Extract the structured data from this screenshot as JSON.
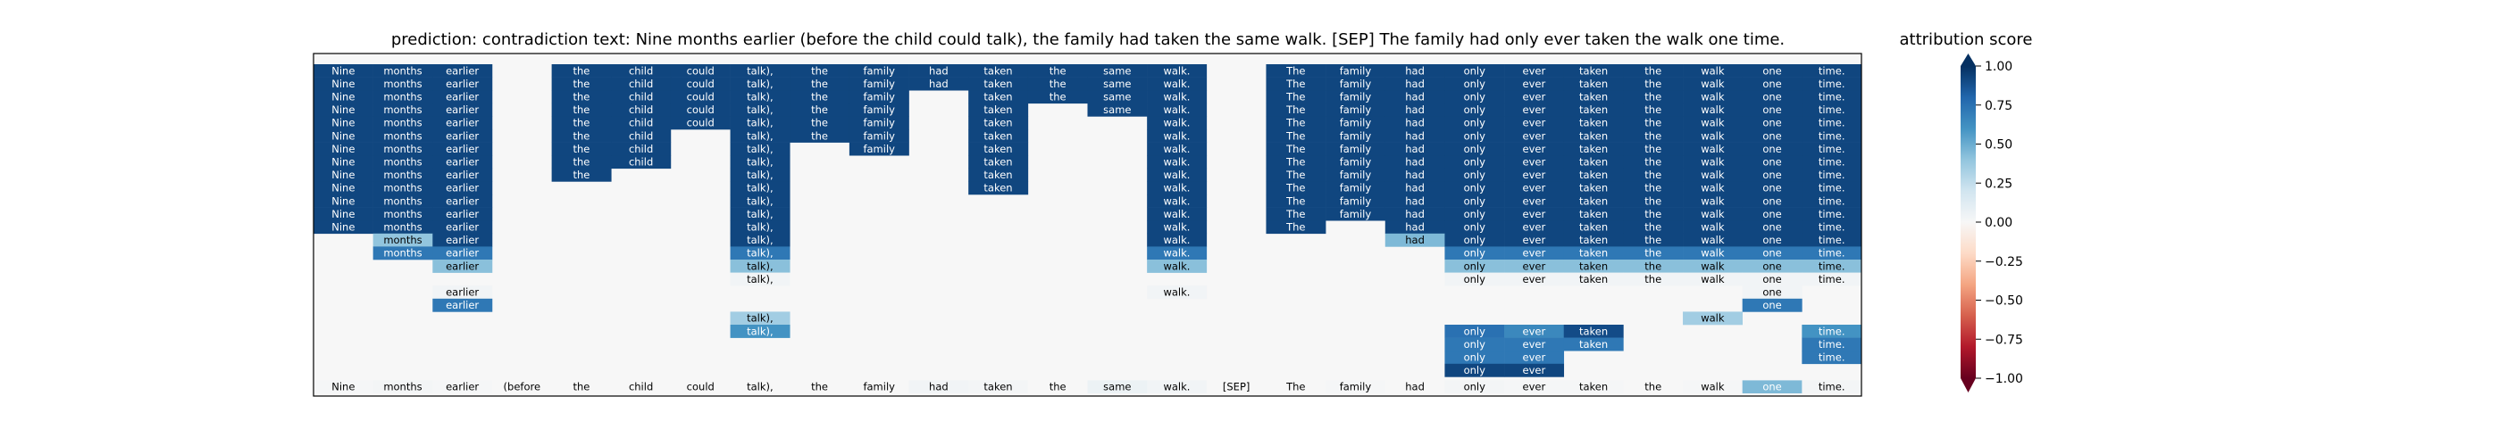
{
  "chart_data": {
    "type": "heatmap",
    "title": "prediction:  contradiction     text:  Nine months earlier (before the child could talk), the family had taken the same walk. [SEP] The family had only ever taken the walk one time.",
    "tokens": [
      "Nine",
      "months",
      "earlier",
      "(before",
      "the",
      "child",
      "could",
      "talk),",
      "the",
      "family",
      "had",
      "taken",
      "the",
      "same",
      "walk.",
      "[SEP]",
      "The",
      "family",
      "had",
      "only",
      "ever",
      "taken",
      "the",
      "walk",
      "one",
      "time."
    ],
    "colorbar": {
      "label": "attribution score",
      "range": [
        -1.0,
        1.0
      ],
      "ticks": [
        "1.00",
        "0.75",
        "0.50",
        "0.25",
        "0.00",
        "−0.25",
        "−0.50",
        "−0.75",
        "−1.00"
      ],
      "tick_values": [
        1.0,
        0.75,
        0.5,
        0.25,
        0.0,
        -0.25,
        -0.5,
        -0.75,
        -1.0
      ],
      "colormap": "RdBu",
      "extend": "both"
    },
    "bottom_row_values": [
      0.01,
      0.02,
      0.01,
      0.0,
      0.0,
      0.0,
      0.0,
      0.0,
      0.0,
      0.0,
      0.03,
      0.02,
      0.0,
      0.06,
      0.03,
      0.0,
      0.0,
      0.01,
      0.0,
      0.02,
      0.01,
      0.01,
      0.0,
      0.01,
      0.45,
      0.02
    ],
    "grid": [
      [
        0.92,
        0.92,
        0.92,
        0.0,
        0.92,
        0.92,
        0.92,
        0.92,
        0.92,
        0.92,
        0.92,
        0.92,
        0.92,
        0.92,
        0.92,
        0.0,
        0.92,
        0.92,
        0.92,
        0.92,
        0.92,
        0.92,
        0.92,
        0.92,
        0.92,
        0.92
      ],
      [
        0.92,
        0.92,
        0.92,
        0.0,
        0.92,
        0.92,
        0.92,
        0.92,
        0.92,
        0.92,
        0.92,
        0.92,
        0.92,
        0.92,
        0.92,
        0.0,
        0.92,
        0.92,
        0.92,
        0.92,
        0.92,
        0.92,
        0.92,
        0.92,
        0.92,
        0.92
      ],
      [
        0.92,
        0.92,
        0.92,
        0.0,
        0.92,
        0.92,
        0.92,
        0.92,
        0.92,
        0.92,
        0.0,
        0.92,
        0.92,
        0.92,
        0.92,
        0.0,
        0.92,
        0.92,
        0.92,
        0.92,
        0.92,
        0.92,
        0.92,
        0.92,
        0.92,
        0.92
      ],
      [
        0.92,
        0.92,
        0.92,
        0.0,
        0.92,
        0.92,
        0.92,
        0.92,
        0.92,
        0.92,
        0.0,
        0.92,
        0.0,
        0.92,
        0.92,
        0.0,
        0.92,
        0.92,
        0.92,
        0.92,
        0.92,
        0.92,
        0.92,
        0.92,
        0.92,
        0.92
      ],
      [
        0.92,
        0.92,
        0.92,
        0.0,
        0.92,
        0.92,
        0.92,
        0.92,
        0.92,
        0.92,
        0.0,
        0.92,
        0.0,
        0.0,
        0.92,
        0.0,
        0.92,
        0.92,
        0.92,
        0.92,
        0.92,
        0.92,
        0.92,
        0.92,
        0.92,
        0.92
      ],
      [
        0.92,
        0.92,
        0.92,
        0.0,
        0.92,
        0.92,
        0.0,
        0.92,
        0.92,
        0.92,
        0.0,
        0.92,
        0.0,
        0.0,
        0.92,
        0.0,
        0.92,
        0.92,
        0.92,
        0.92,
        0.92,
        0.92,
        0.92,
        0.92,
        0.92,
        0.92
      ],
      [
        0.92,
        0.92,
        0.92,
        0.0,
        0.92,
        0.92,
        0.0,
        0.92,
        0.0,
        0.92,
        0.0,
        0.92,
        0.0,
        0.0,
        0.92,
        0.0,
        0.92,
        0.92,
        0.92,
        0.92,
        0.92,
        0.92,
        0.92,
        0.92,
        0.92,
        0.92
      ],
      [
        0.92,
        0.92,
        0.92,
        0.0,
        0.92,
        0.92,
        0.0,
        0.92,
        0.0,
        0.0,
        0.0,
        0.92,
        0.0,
        0.0,
        0.92,
        0.0,
        0.92,
        0.92,
        0.92,
        0.92,
        0.92,
        0.92,
        0.92,
        0.92,
        0.92,
        0.92
      ],
      [
        0.92,
        0.92,
        0.92,
        0.0,
        0.92,
        0.0,
        0.0,
        0.92,
        0.0,
        0.0,
        0.0,
        0.92,
        0.0,
        0.0,
        0.92,
        0.0,
        0.92,
        0.92,
        0.92,
        0.92,
        0.92,
        0.92,
        0.92,
        0.92,
        0.92,
        0.92
      ],
      [
        0.92,
        0.92,
        0.92,
        0.0,
        0.0,
        0.0,
        0.0,
        0.92,
        0.0,
        0.0,
        0.0,
        0.92,
        0.0,
        0.0,
        0.92,
        0.0,
        0.92,
        0.92,
        0.92,
        0.92,
        0.92,
        0.92,
        0.92,
        0.92,
        0.92,
        0.92
      ],
      [
        0.92,
        0.92,
        0.92,
        0.0,
        0.0,
        0.0,
        0.0,
        0.92,
        0.0,
        0.0,
        0.0,
        0.0,
        0.0,
        0.0,
        0.92,
        0.0,
        0.92,
        0.92,
        0.92,
        0.92,
        0.92,
        0.92,
        0.92,
        0.92,
        0.92,
        0.92
      ],
      [
        0.92,
        0.92,
        0.92,
        0.0,
        0.0,
        0.0,
        0.0,
        0.92,
        0.0,
        0.0,
        0.0,
        0.0,
        0.0,
        0.0,
        0.92,
        0.0,
        0.92,
        0.92,
        0.92,
        0.92,
        0.92,
        0.92,
        0.92,
        0.92,
        0.92,
        0.92
      ],
      [
        0.92,
        0.92,
        0.92,
        0.0,
        0.0,
        0.0,
        0.0,
        0.92,
        0.0,
        0.0,
        0.0,
        0.0,
        0.0,
        0.0,
        0.92,
        0.0,
        0.92,
        0.0,
        0.92,
        0.92,
        0.92,
        0.92,
        0.92,
        0.92,
        0.92,
        0.92
      ],
      [
        0.0,
        0.4,
        0.92,
        0.0,
        0.0,
        0.0,
        0.0,
        0.92,
        0.0,
        0.0,
        0.0,
        0.0,
        0.0,
        0.0,
        0.92,
        0.0,
        0.0,
        0.0,
        0.45,
        0.92,
        0.92,
        0.92,
        0.92,
        0.92,
        0.92,
        0.92
      ],
      [
        0.0,
        0.72,
        0.72,
        0.0,
        0.0,
        0.0,
        0.0,
        0.72,
        0.0,
        0.0,
        0.0,
        0.0,
        0.0,
        0.0,
        0.72,
        0.0,
        0.0,
        0.0,
        0.0,
        0.72,
        0.72,
        0.72,
        0.72,
        0.72,
        0.72,
        0.72
      ],
      [
        0.0,
        0.0,
        0.42,
        0.0,
        0.0,
        0.0,
        0.0,
        0.42,
        0.0,
        0.0,
        0.0,
        0.0,
        0.0,
        0.0,
        0.42,
        0.0,
        0.0,
        0.0,
        0.0,
        0.42,
        0.42,
        0.42,
        0.42,
        0.42,
        0.42,
        0.42
      ],
      [
        0.0,
        0.0,
        0.0,
        0.0,
        0.0,
        0.0,
        0.0,
        0.03,
        0.0,
        0.0,
        0.0,
        0.0,
        0.0,
        0.0,
        0.0,
        0.0,
        0.0,
        0.0,
        0.0,
        0.03,
        0.03,
        0.03,
        0.03,
        0.03,
        0.03,
        0.03
      ],
      [
        0.0,
        0.0,
        0.03,
        0.0,
        0.0,
        0.0,
        0.0,
        0.0,
        0.0,
        0.0,
        0.0,
        0.0,
        0.0,
        0.0,
        0.03,
        0.0,
        0.0,
        0.0,
        0.0,
        0.0,
        0.0,
        0.0,
        0.0,
        0.0,
        0.03,
        0.0
      ],
      [
        0.0,
        0.0,
        0.72,
        0.0,
        0.0,
        0.0,
        0.0,
        0.0,
        0.0,
        0.0,
        0.0,
        0.0,
        0.0,
        0.0,
        0.0,
        0.0,
        0.0,
        0.0,
        0.0,
        0.0,
        0.0,
        0.0,
        0.0,
        0.0,
        0.72,
        0.0
      ],
      [
        0.0,
        0.0,
        0.0,
        0.0,
        0.0,
        0.0,
        0.0,
        0.35,
        0.0,
        0.0,
        0.0,
        0.0,
        0.0,
        0.0,
        0.0,
        0.0,
        0.0,
        0.0,
        0.0,
        0.0,
        0.0,
        0.0,
        0.0,
        0.35,
        0.0,
        0.0
      ],
      [
        0.0,
        0.0,
        0.0,
        0.0,
        0.0,
        0.0,
        0.0,
        0.6,
        0.0,
        0.0,
        0.0,
        0.0,
        0.0,
        0.0,
        0.0,
        0.0,
        0.0,
        0.0,
        0.0,
        0.75,
        0.65,
        0.9,
        0.0,
        0.0,
        0.0,
        0.6
      ],
      [
        0.0,
        0.0,
        0.0,
        0.0,
        0.0,
        0.0,
        0.0,
        0.0,
        0.0,
        0.0,
        0.0,
        0.0,
        0.0,
        0.0,
        0.0,
        0.0,
        0.0,
        0.0,
        0.0,
        0.72,
        0.72,
        0.72,
        0.0,
        0.0,
        0.0,
        0.72
      ],
      [
        0.0,
        0.0,
        0.0,
        0.0,
        0.0,
        0.0,
        0.0,
        0.0,
        0.0,
        0.0,
        0.0,
        0.0,
        0.0,
        0.0,
        0.0,
        0.0,
        0.0,
        0.0,
        0.0,
        0.72,
        0.72,
        0.0,
        0.0,
        0.0,
        0.0,
        0.72
      ],
      [
        0.0,
        0.0,
        0.0,
        0.0,
        0.0,
        0.0,
        0.0,
        0.0,
        0.0,
        0.0,
        0.0,
        0.0,
        0.0,
        0.0,
        0.0,
        0.0,
        0.0,
        0.0,
        0.0,
        0.92,
        0.92,
        0.0,
        0.0,
        0.0,
        0.0,
        0.0
      ]
    ]
  }
}
